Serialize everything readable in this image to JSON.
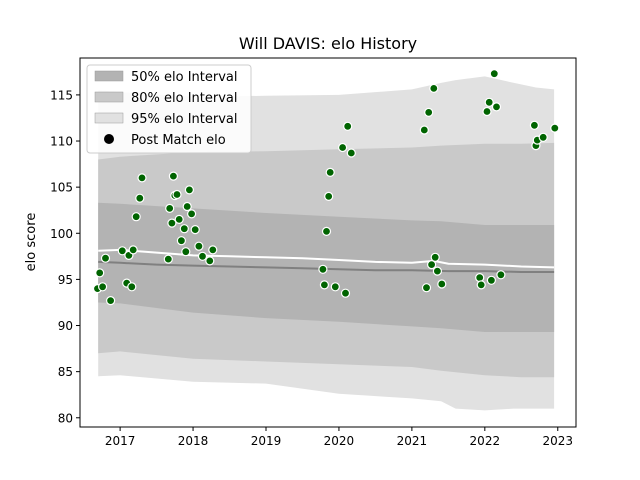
{
  "chart_data": {
    "type": "scatter",
    "title": "Will DAVIS: elo History",
    "xlabel": "",
    "ylabel": "elo score",
    "xlim": [
      2016.45,
      2023.25
    ],
    "ylim": [
      79.0,
      119.0
    ],
    "x_ticks": [
      2017,
      2018,
      2019,
      2020,
      2021,
      2022,
      2023
    ],
    "x_tick_labels": [
      "2017",
      "2018",
      "2019",
      "2020",
      "2021",
      "2022",
      "2023"
    ],
    "y_ticks": [
      80,
      85,
      90,
      95,
      100,
      105,
      110,
      115
    ],
    "y_tick_labels": [
      "80",
      "85",
      "90",
      "95",
      "100",
      "105",
      "110",
      "115"
    ],
    "grid": false,
    "legend_position": "top-left",
    "legend": [
      {
        "label": "50% elo Interval",
        "kind": "band",
        "color": "#b3b3b3"
      },
      {
        "label": "80% elo Interval",
        "kind": "band",
        "color": "#c9c9c9"
      },
      {
        "label": "95% elo Interval",
        "kind": "band",
        "color": "#e1e1e1"
      },
      {
        "label": "Post Match elo",
        "kind": "marker",
        "color": "#000000"
      }
    ],
    "bands": [
      {
        "name": "95% elo Interval",
        "color": "#e1e1e1",
        "x": [
          2016.7,
          2017.0,
          2018.0,
          2019.0,
          2020.0,
          2021.0,
          2021.4,
          2021.6,
          2022.0,
          2022.4,
          2022.7,
          2022.95
        ],
        "upper": [
          115.5,
          115.3,
          114.8,
          114.9,
          115.0,
          115.6,
          116.3,
          116.6,
          117.0,
          116.3,
          115.8,
          115.6
        ],
        "lower": [
          84.5,
          84.6,
          83.9,
          83.7,
          82.6,
          82.1,
          81.8,
          81.0,
          80.8,
          81.0,
          81.0,
          81.0
        ]
      },
      {
        "name": "80% elo Interval",
        "color": "#c9c9c9",
        "x": [
          2016.7,
          2017.0,
          2018.0,
          2019.0,
          2020.0,
          2021.0,
          2021.4,
          2022.0,
          2022.5,
          2022.95
        ],
        "upper": [
          108.0,
          108.3,
          108.8,
          108.9,
          109.1,
          109.3,
          109.5,
          109.7,
          109.7,
          109.8
        ],
        "lower": [
          87.0,
          87.2,
          86.4,
          86.1,
          85.8,
          85.5,
          85.1,
          84.6,
          84.4,
          84.4
        ]
      },
      {
        "name": "50% elo Interval",
        "color": "#b3b3b3",
        "x": [
          2016.7,
          2017.0,
          2018.0,
          2019.0,
          2020.0,
          2021.0,
          2021.4,
          2022.0,
          2022.5,
          2022.95
        ],
        "upper": [
          103.3,
          103.2,
          102.7,
          102.2,
          101.8,
          101.4,
          101.3,
          100.9,
          100.9,
          100.9
        ],
        "lower": [
          92.5,
          92.4,
          91.4,
          90.8,
          90.4,
          89.9,
          89.7,
          89.3,
          89.3,
          89.3
        ]
      }
    ],
    "lines": [
      {
        "color": "#ffffff",
        "x": [
          2016.7,
          2017.0,
          2017.5,
          2018.0,
          2018.5,
          2019.0,
          2019.5,
          2020.0,
          2020.5,
          2021.0,
          2021.3,
          2021.5,
          2022.0,
          2022.5,
          2022.95
        ],
        "y": [
          98.1,
          98.2,
          97.9,
          97.6,
          97.5,
          97.4,
          97.3,
          97.1,
          96.9,
          96.8,
          97.0,
          96.7,
          96.6,
          96.4,
          96.3
        ]
      },
      {
        "color": "#808080",
        "x": [
          2016.7,
          2017.0,
          2017.5,
          2018.0,
          2018.5,
          2019.0,
          2019.5,
          2020.0,
          2020.5,
          2021.0,
          2021.5,
          2022.0,
          2022.5,
          2022.95
        ],
        "y": [
          96.9,
          96.8,
          96.6,
          96.5,
          96.4,
          96.3,
          96.2,
          96.1,
          96.0,
          96.0,
          95.9,
          95.9,
          95.8,
          95.8
        ]
      }
    ],
    "points": {
      "name": "Post Match elo",
      "color": "#006400",
      "x": [
        2016.69,
        2016.72,
        2016.76,
        2016.8,
        2016.87,
        2017.03,
        2017.09,
        2017.12,
        2017.16,
        2017.18,
        2017.22,
        2017.27,
        2017.3,
        2017.66,
        2017.68,
        2017.71,
        2017.73,
        2017.75,
        2017.78,
        2017.81,
        2017.84,
        2017.88,
        2017.9,
        2017.92,
        2017.95,
        2017.98,
        2018.03,
        2018.08,
        2018.13,
        2018.23,
        2018.27,
        2019.78,
        2019.8,
        2019.83,
        2019.86,
        2019.88,
        2019.95,
        2020.05,
        2020.09,
        2020.12,
        2020.17,
        2021.17,
        2021.2,
        2021.23,
        2021.27,
        2021.3,
        2021.32,
        2021.35,
        2021.41,
        2021.93,
        2021.95,
        2022.03,
        2022.06,
        2022.09,
        2022.13,
        2022.16,
        2022.22,
        2022.68,
        2022.7,
        2022.72,
        2022.8,
        2022.96
      ],
      "y": [
        94.0,
        95.7,
        94.2,
        97.3,
        92.7,
        98.1,
        94.6,
        97.6,
        94.2,
        98.2,
        101.8,
        103.8,
        106.0,
        97.2,
        102.7,
        101.1,
        106.2,
        104.1,
        104.2,
        101.5,
        99.2,
        100.5,
        98.0,
        102.9,
        104.7,
        102.1,
        100.4,
        98.6,
        97.5,
        97.0,
        98.2,
        96.1,
        94.4,
        100.2,
        104.0,
        106.6,
        94.2,
        109.3,
        93.5,
        111.6,
        108.7,
        111.2,
        94.1,
        113.1,
        96.6,
        115.7,
        97.4,
        95.9,
        94.5,
        95.2,
        94.4,
        113.2,
        114.2,
        94.9,
        117.3,
        113.7,
        95.5,
        111.7,
        109.5,
        110.1,
        110.4,
        111.4
      ]
    }
  }
}
